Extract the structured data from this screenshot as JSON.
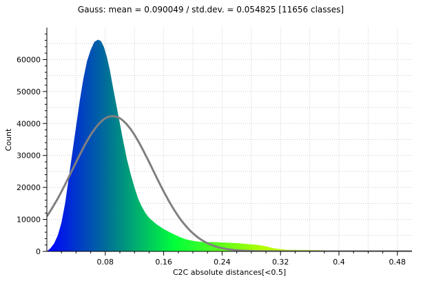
{
  "chart_data": {
    "type": "area",
    "title": "Gauss: mean = 0.090049 / std.dev. = 0.054825 [11656 classes]",
    "xlabel": "C2C absolute distances[<0.5]",
    "ylabel": "Count",
    "xlim": [
      0,
      0.5
    ],
    "ylim": [
      0,
      70000
    ],
    "x_ticks": [
      0.08,
      0.16,
      0.24,
      0.32,
      0.4,
      0.48
    ],
    "x_tick_labels": [
      "0.08",
      "0.16",
      "0.24",
      "0.32",
      "0.4",
      "0.48"
    ],
    "y_ticks": [
      0,
      10000,
      20000,
      30000,
      40000,
      50000,
      60000
    ],
    "y_tick_labels": [
      "0",
      "10000",
      "20000",
      "30000",
      "40000",
      "50000",
      "60000"
    ],
    "grid": true,
    "series": [
      {
        "kind": "histogram",
        "x": [
          0.0,
          0.005,
          0.01,
          0.015,
          0.02,
          0.025,
          0.03,
          0.035,
          0.04,
          0.045,
          0.05,
          0.055,
          0.06,
          0.065,
          0.07,
          0.074,
          0.078,
          0.082,
          0.086,
          0.09,
          0.095,
          0.1,
          0.105,
          0.11,
          0.115,
          0.12,
          0.125,
          0.13,
          0.135,
          0.14,
          0.15,
          0.16,
          0.17,
          0.18,
          0.19,
          0.2,
          0.21,
          0.22,
          0.23,
          0.24,
          0.25,
          0.26,
          0.27,
          0.28,
          0.29,
          0.3,
          0.31,
          0.32,
          0.33,
          0.35,
          0.37,
          0.39,
          0.41,
          0.43,
          0.45,
          0.47,
          0.5
        ],
        "values": [
          0,
          1000,
          2500,
          5000,
          9000,
          15000,
          23000,
          31000,
          39000,
          47000,
          54000,
          59500,
          63000,
          65500,
          66200,
          65800,
          64000,
          61000,
          57000,
          52000,
          46000,
          40000,
          34000,
          28500,
          24000,
          20000,
          16500,
          14000,
          12000,
          10500,
          8500,
          7000,
          5800,
          4700,
          3800,
          3300,
          3000,
          2900,
          2900,
          2800,
          2700,
          2600,
          2400,
          2200,
          2000,
          1600,
          1000,
          700,
          500,
          450,
          400,
          300,
          200,
          150,
          100,
          50,
          0
        ],
        "colors": [
          "#0000ff",
          "#006c9a",
          "#00ff3a",
          "#b8ff00"
        ]
      },
      {
        "kind": "gauss_fit",
        "mean": 0.090049,
        "std_dev": 0.054825,
        "peak": 42300,
        "color": "#808080"
      }
    ]
  }
}
